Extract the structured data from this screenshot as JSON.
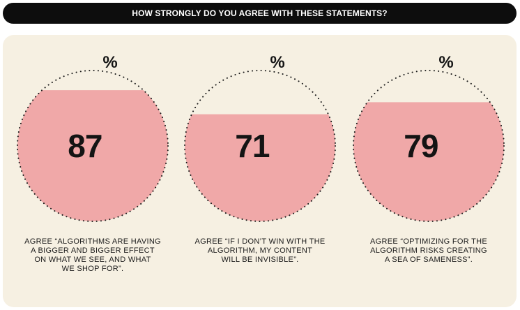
{
  "header": {
    "title": "HOW STRONGLY DO YOU AGREE WITH THESE STATEMENTS?"
  },
  "colors": {
    "fill": "#f0a8a8",
    "panel": "#f6f0e2",
    "text": "#141414",
    "header_bg": "#0d0d0d"
  },
  "chart_data": {
    "type": "gauge",
    "unit": "%",
    "items": [
      {
        "value": 87,
        "label": "87",
        "caption_lines": [
          "AGREE “ALGORITHMS ARE HAVING",
          "A BIGGER AND BIGGER EFFECT",
          "ON WHAT WE SEE, AND WHAT",
          "WE SHOP FOR”."
        ]
      },
      {
        "value": 71,
        "label": "71",
        "caption_lines": [
          "AGREE “IF I DON’T WIN WITH THE",
          "ALGORITHM, MY CONTENT",
          "WILL BE INVISIBLE”."
        ]
      },
      {
        "value": 79,
        "label": "79",
        "caption_lines": [
          "AGREE “OPTIMIZING FOR THE",
          "ALGORITHM RISKS CREATING",
          "A SEA OF SAMENESS”."
        ]
      }
    ]
  }
}
